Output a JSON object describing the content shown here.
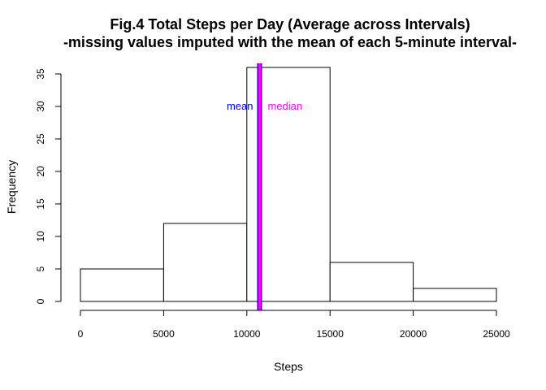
{
  "chart_data": {
    "type": "bar",
    "title": "Fig.4 Total Steps per Day (Average across Intervals)",
    "subtitle": "-missing values imputed with the mean of each 5-minute interval-",
    "xlabel": "Steps",
    "ylabel": "Frequency",
    "xlim": [
      0,
      25000
    ],
    "ylim": [
      0,
      35
    ],
    "x_ticks": [
      "0",
      "5000",
      "10000",
      "15000",
      "20000",
      "25000"
    ],
    "y_ticks": [
      "0",
      "5",
      "10",
      "15",
      "20",
      "25",
      "30",
      "35"
    ],
    "bins": [
      {
        "from": 0,
        "to": 5000,
        "value": 5
      },
      {
        "from": 5000,
        "to": 10000,
        "value": 12
      },
      {
        "from": 10000,
        "to": 15000,
        "value": 36
      },
      {
        "from": 15000,
        "to": 20000,
        "value": 6
      },
      {
        "from": 20000,
        "to": 25000,
        "value": 2
      }
    ],
    "grid": false,
    "reference_lines": [
      {
        "label": "mean",
        "x": 10766,
        "color": "#0000ff",
        "text_side": "left"
      },
      {
        "label": "median",
        "x": 10766,
        "color": "#ff00ff",
        "text_side": "right"
      }
    ],
    "annotation_y": 30
  }
}
